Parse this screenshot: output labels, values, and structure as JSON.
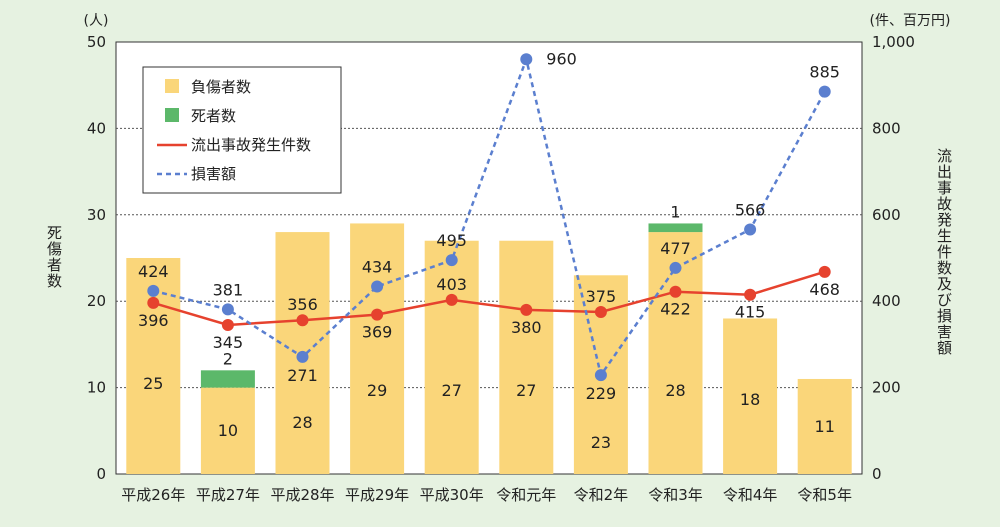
{
  "chart_data": {
    "type": "bar",
    "categories": [
      "平成26年",
      "平成27年",
      "平成28年",
      "平成29年",
      "平成30年",
      "令和元年",
      "令和2年",
      "令和3年",
      "令和4年",
      "令和5年"
    ],
    "series": [
      {
        "name": "負傷者数",
        "type": "bar",
        "axis": "left",
        "color": "#fad67a",
        "values": [
          25,
          10,
          28,
          29,
          27,
          27,
          23,
          28,
          18,
          11
        ]
      },
      {
        "name": "死者数",
        "type": "bar",
        "axis": "left",
        "color": "#5cb86a",
        "stacked": true,
        "values": [
          0,
          2,
          0,
          0,
          0,
          0,
          0,
          1,
          0,
          0
        ]
      },
      {
        "name": "流出事故発生件数",
        "type": "line",
        "axis": "right",
        "color": "#e6422e",
        "values": [
          396,
          345,
          356,
          369,
          403,
          380,
          375,
          422,
          415,
          468
        ]
      },
      {
        "name": "損害額",
        "type": "line",
        "axis": "right",
        "color": "#5b7fcf",
        "dashed": true,
        "values": [
          424,
          381,
          271,
          434,
          495,
          960,
          229,
          477,
          566,
          885
        ]
      }
    ],
    "left_axis": {
      "ylabel": "死傷者数",
      "unit": "(人)",
      "ylim": [
        0,
        50
      ],
      "ticks": [
        "0",
        "10",
        "20",
        "30",
        "40",
        "50"
      ]
    },
    "right_axis": {
      "ylabel": "流出事故発生件数及び損害額",
      "unit": "(件、百万円)",
      "ylim": [
        0,
        1000
      ],
      "ticks": [
        "0",
        "200",
        "400",
        "600",
        "800",
        "1,000"
      ]
    },
    "bar_labels": [
      "25",
      "10",
      "28",
      "29",
      "27",
      "27",
      "23",
      "28",
      "18",
      "11"
    ],
    "death_labels": [
      "",
      "2",
      "",
      "",
      "",
      "",
      "",
      "1",
      "",
      ""
    ],
    "incident_labels": [
      "396",
      "345",
      "356",
      "369",
      "403",
      "380",
      "375",
      "422",
      "415",
      "468"
    ],
    "damage_labels": [
      "424",
      "381",
      "271",
      "434",
      "495",
      "960",
      "229",
      "477",
      "566",
      "885"
    ],
    "legend": {
      "placement": "top-left",
      "items": [
        "負傷者数",
        "死者数",
        "流出事故発生件数",
        "損害額"
      ]
    },
    "grid": true
  }
}
